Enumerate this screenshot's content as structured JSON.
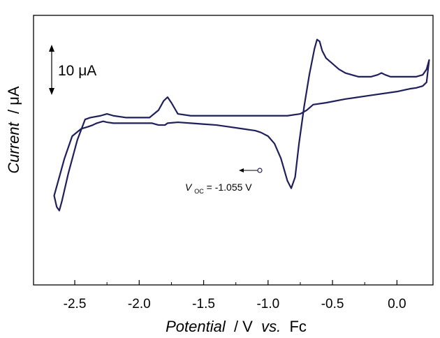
{
  "chart_data": {
    "type": "line",
    "title": "",
    "xlabel": {
      "italic_part": "Potential",
      "plain_part": " / V ",
      "italic_part2": "vs.",
      "plain_part2": " Fc"
    },
    "ylabel": {
      "italic_part": "Current",
      "plain_part": " / μA"
    },
    "xlim": [
      -2.82,
      0.28
    ],
    "ylim": [
      -50,
      95
    ],
    "x_ticks": [
      -2.5,
      -2.0,
      -1.5,
      -1.0,
      -0.5,
      0.0
    ],
    "x_tick_labels": [
      "-2.5",
      "-2.0",
      "-1.5",
      "-1.0",
      "-0.5",
      "0.0"
    ],
    "grid": false,
    "line_color": "#1f1f5c",
    "scale_bar": {
      "label": "10 μA",
      "value": 10
    },
    "annotation": {
      "v_main": "V",
      "v_sub": "OC",
      "value_text": " = -1.055 V",
      "x": -1.055,
      "y": 32
    },
    "series": [
      {
        "values": [
          [
            -1.055,
            32
          ],
          [
            -1.0,
            30
          ],
          [
            -0.95,
            26
          ],
          [
            -0.9,
            18
          ],
          [
            -0.85,
            6
          ],
          [
            -0.82,
            2
          ],
          [
            -0.79,
            8
          ],
          [
            -0.76,
            26
          ],
          [
            -0.72,
            46
          ],
          [
            -0.68,
            63
          ],
          [
            -0.64,
            77
          ],
          [
            -0.62,
            82
          ],
          [
            -0.6,
            81
          ],
          [
            -0.58,
            76
          ],
          [
            -0.55,
            72
          ],
          [
            -0.5,
            69
          ],
          [
            -0.45,
            66
          ],
          [
            -0.4,
            64
          ],
          [
            -0.35,
            63
          ],
          [
            -0.3,
            62
          ],
          [
            -0.25,
            62
          ],
          [
            -0.2,
            62
          ],
          [
            -0.15,
            63
          ],
          [
            -0.12,
            64
          ],
          [
            -0.09,
            63
          ],
          [
            -0.05,
            62
          ],
          [
            0.0,
            62
          ],
          [
            0.05,
            62
          ],
          [
            0.1,
            62
          ],
          [
            0.15,
            62
          ],
          [
            0.2,
            63
          ],
          [
            0.23,
            66
          ],
          [
            0.25,
            71
          ],
          [
            0.23,
            59
          ],
          [
            0.2,
            57
          ],
          [
            0.15,
            56
          ],
          [
            0.1,
            55.5
          ],
          [
            0.0,
            54
          ],
          [
            -0.2,
            52
          ],
          [
            -0.4,
            50
          ],
          [
            -0.55,
            48
          ],
          [
            -0.65,
            47
          ],
          [
            -0.7,
            44
          ],
          [
            -0.75,
            42
          ],
          [
            -0.85,
            41
          ],
          [
            -1.0,
            41
          ],
          [
            -1.2,
            41
          ],
          [
            -1.4,
            41
          ],
          [
            -1.6,
            41
          ],
          [
            -1.7,
            42
          ],
          [
            -1.75,
            48
          ],
          [
            -1.78,
            51
          ],
          [
            -1.81,
            49
          ],
          [
            -1.85,
            44
          ],
          [
            -1.92,
            40
          ],
          [
            -2.0,
            40
          ],
          [
            -2.1,
            40
          ],
          [
            -2.2,
            41
          ],
          [
            -2.25,
            42
          ],
          [
            -2.3,
            41
          ],
          [
            -2.38,
            40
          ],
          [
            -2.42,
            39
          ],
          [
            -2.48,
            28
          ],
          [
            -2.55,
            10
          ],
          [
            -2.6,
            -5
          ],
          [
            -2.62,
            -10
          ],
          [
            -2.64,
            -8
          ],
          [
            -2.66,
            -2
          ],
          [
            -2.58,
            18
          ],
          [
            -2.52,
            30
          ],
          [
            -2.45,
            34
          ],
          [
            -2.4,
            35
          ],
          [
            -2.36,
            36
          ],
          [
            -2.33,
            37
          ],
          [
            -2.28,
            38
          ],
          [
            -2.25,
            37.5
          ],
          [
            -2.2,
            37
          ],
          [
            -2.1,
            37
          ],
          [
            -2.0,
            37
          ],
          [
            -1.9,
            37
          ],
          [
            -1.85,
            36
          ],
          [
            -1.8,
            36
          ],
          [
            -1.78,
            37
          ],
          [
            -1.7,
            37.5
          ],
          [
            -1.6,
            37
          ],
          [
            -1.5,
            36.5
          ],
          [
            -1.4,
            36
          ],
          [
            -1.3,
            35
          ],
          [
            -1.2,
            34
          ],
          [
            -1.1,
            33
          ],
          [
            -1.055,
            32
          ]
        ]
      }
    ]
  }
}
